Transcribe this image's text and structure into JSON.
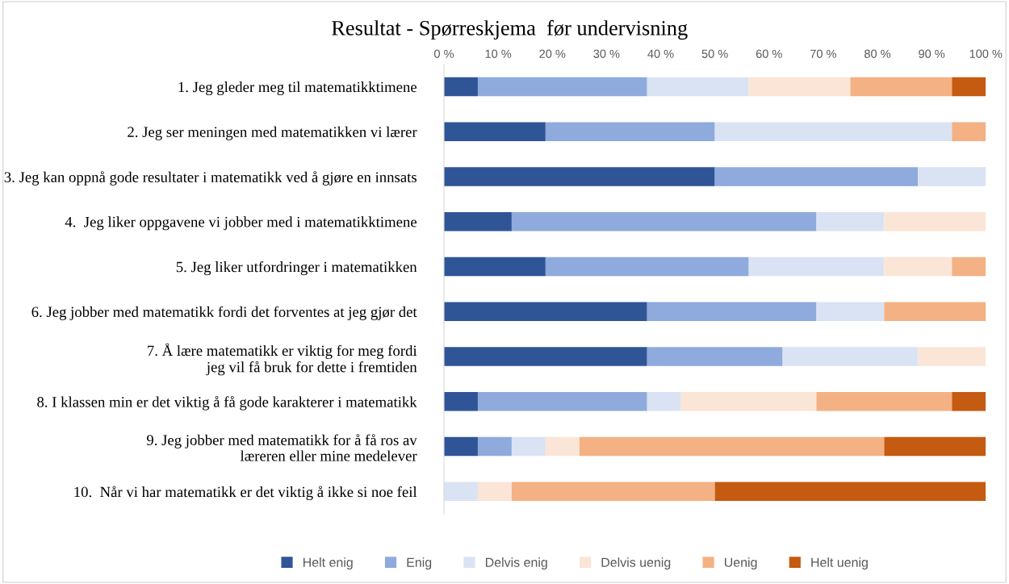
{
  "chart_data": {
    "type": "bar",
    "orientation": "horizontal",
    "stacked": true,
    "title": "Resultat - Spørreskjema  før undervisning",
    "categories": [
      "1. Jeg gleder meg til matematikktimene",
      "2. Jeg ser meningen med matematikken vi lærer",
      "3. Jeg kan oppnå gode resultater i matematikk ved å gjøre en innsats",
      "4.  Jeg liker oppgavene vi jobber med i matematikktimene",
      "5. Jeg liker utfordringer i matematikken",
      "6. Jeg jobber med matematikk fordi det forventes at jeg gjør det",
      "7. Å lære matematikk er viktig for meg fordi\njeg vil få bruk for dette i fremtiden",
      "8. I klassen min er det viktig å få gode karakterer i matematikk",
      "9. Jeg jobber med matematikk for å få ros av\nlæreren eller mine medelever",
      "10.  Når vi har matematikk er det viktig å ikke si noe feil"
    ],
    "series": [
      {
        "name": "Helt enig",
        "color": "#2f5597",
        "values": [
          6.25,
          18.75,
          50,
          12.5,
          18.75,
          37.5,
          37.5,
          6.25,
          6.25,
          0
        ]
      },
      {
        "name": "Enig",
        "color": "#8faadc",
        "values": [
          31.25,
          31.25,
          37.5,
          56.25,
          37.5,
          31.25,
          25,
          31.25,
          6.25,
          0
        ]
      },
      {
        "name": "Delvis enig",
        "color": "#dae3f3",
        "values": [
          18.75,
          43.75,
          12.5,
          12.5,
          25,
          12.5,
          25,
          6.25,
          6.25,
          6.25
        ]
      },
      {
        "name": "Delvis uenig",
        "color": "#fbe5d6",
        "values": [
          18.75,
          0,
          0,
          18.75,
          12.5,
          0,
          12.5,
          25,
          6.25,
          6.25
        ]
      },
      {
        "name": "Uenig",
        "color": "#f4b183",
        "values": [
          18.75,
          6.25,
          0,
          0,
          6.25,
          18.75,
          0,
          25,
          56.25,
          37.5
        ]
      },
      {
        "name": "Helt uenig",
        "color": "#c55a11",
        "values": [
          6.25,
          0,
          0,
          0,
          0,
          0,
          0,
          6.25,
          18.75,
          50
        ]
      }
    ],
    "xlim": [
      0,
      100
    ],
    "xticks": [
      {
        "value": 0,
        "label": "0 %"
      },
      {
        "value": 10,
        "label": "10 %"
      },
      {
        "value": 20,
        "label": "20 %"
      },
      {
        "value": 30,
        "label": "30 %"
      },
      {
        "value": 40,
        "label": "40 %"
      },
      {
        "value": 50,
        "label": "50 %"
      },
      {
        "value": 60,
        "label": "60 %"
      },
      {
        "value": 70,
        "label": "70 %"
      },
      {
        "value": 80,
        "label": "80 %"
      },
      {
        "value": 90,
        "label": "90 %"
      },
      {
        "value": 100,
        "label": "100 %"
      }
    ],
    "grid": false,
    "legend": "bottom"
  }
}
